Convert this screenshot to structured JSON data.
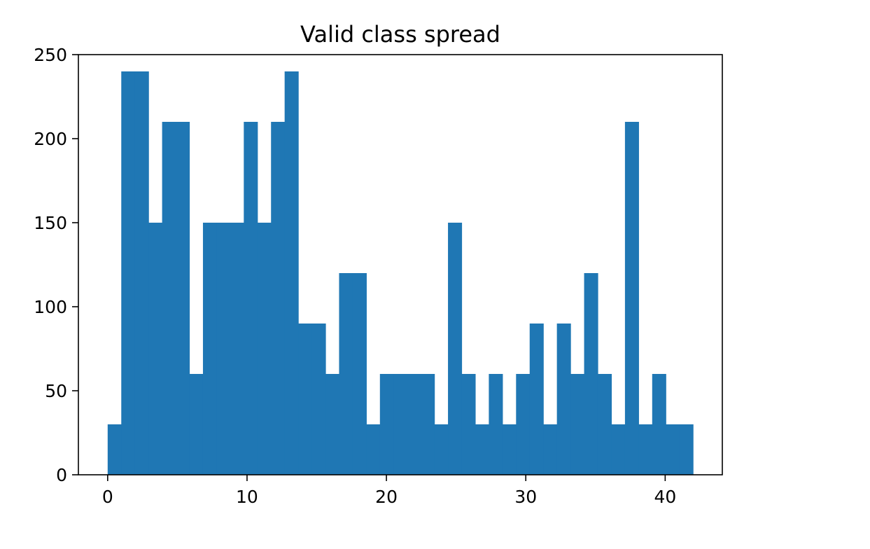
{
  "chart_data": {
    "type": "bar",
    "title": "Valid class spread",
    "xlabel": "",
    "ylabel": "",
    "xlim": [
      -2.1,
      44.1
    ],
    "ylim": [
      0,
      250
    ],
    "x_ticks": [
      0,
      10,
      20,
      30,
      40
    ],
    "y_ticks": [
      0,
      50,
      100,
      150,
      200,
      250
    ],
    "grid": false,
    "bar_color": "#1f77b4",
    "bins": {
      "start": 0,
      "width": 0.9767,
      "values": [
        30,
        240,
        240,
        150,
        210,
        210,
        60,
        150,
        150,
        150,
        210,
        150,
        210,
        240,
        90,
        90,
        60,
        120,
        120,
        30,
        60,
        60,
        60,
        60,
        30,
        150,
        60,
        30,
        60,
        30,
        60,
        90,
        30,
        90,
        60,
        120,
        60,
        30,
        210,
        30,
        60,
        30,
        30
      ]
    }
  }
}
